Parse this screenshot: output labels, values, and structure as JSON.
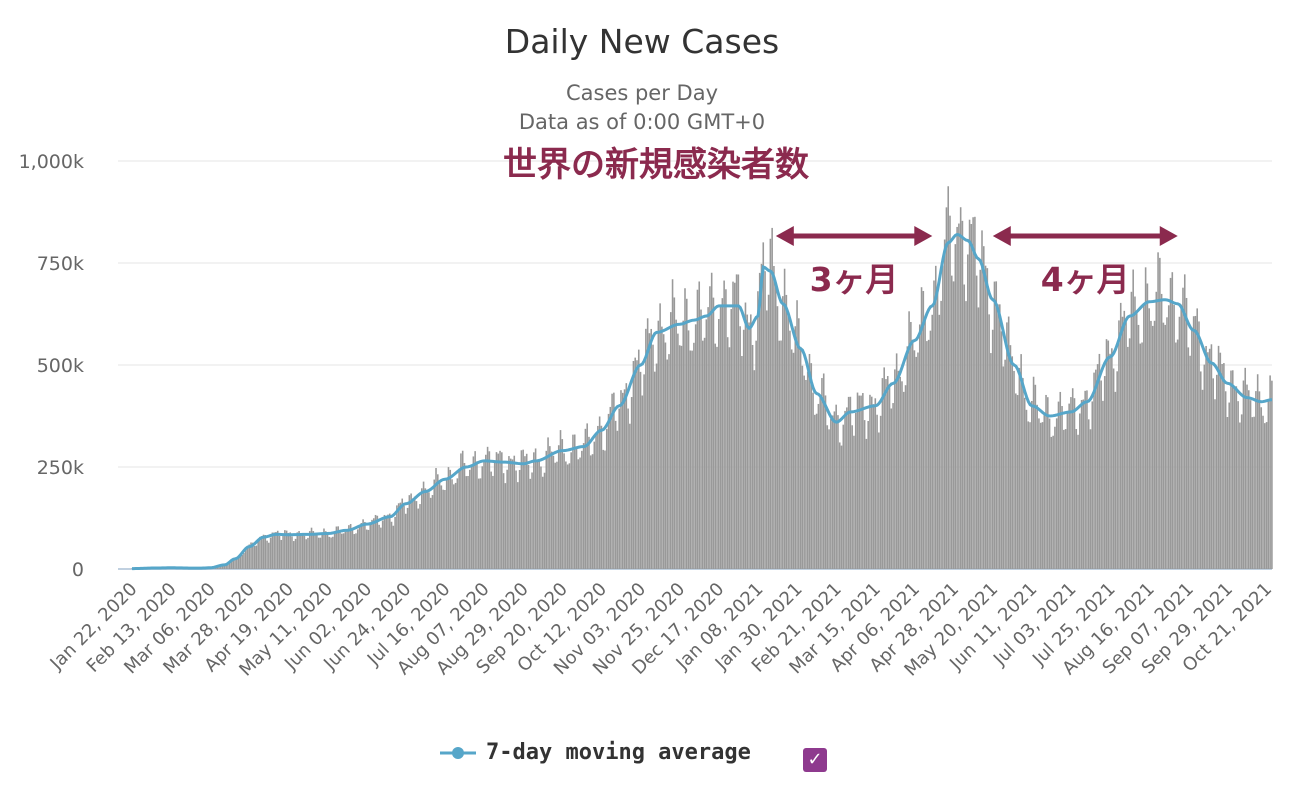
{
  "chart_data": {
    "type": "bar",
    "title": "Daily New Cases",
    "subtitle": "Cases per Day",
    "data_as_of": "Data as of 0:00 GMT+0",
    "annotation_title": "世界の新規感染者数",
    "annotations": [
      {
        "label": "3ヶ月",
        "from": "2021-01-18",
        "to": "2021-04-16"
      },
      {
        "label": "4ヶ月",
        "from": "2021-05-20",
        "to": "2021-09-01"
      }
    ],
    "y_ticks": [
      {
        "value": 0,
        "label": "0"
      },
      {
        "value": 250000,
        "label": "250k"
      },
      {
        "value": 500000,
        "label": "500k"
      },
      {
        "value": 750000,
        "label": "750k"
      },
      {
        "value": 1000000,
        "label": "1,000k"
      }
    ],
    "ylim": [
      0,
      1000000
    ],
    "x_start": "2020-01-22",
    "x_end": "2021-10-24",
    "x_ticks": [
      "Jan 22, 2020",
      "Feb 13, 2020",
      "Mar 06, 2020",
      "Mar 28, 2020",
      "Apr 19, 2020",
      "May 11, 2020",
      "Jun 02, 2020",
      "Jun 24, 2020",
      "Jul 16, 2020",
      "Aug 07, 2020",
      "Aug 29, 2020",
      "Sep 20, 2020",
      "Oct 12, 2020",
      "Nov 03, 2020",
      "Nov 25, 2020",
      "Dec 17, 2020",
      "Jan 08, 2021",
      "Jan 30, 2021",
      "Feb 21, 2021",
      "Mar 15, 2021",
      "Apr 06, 2021",
      "Apr 28, 2021",
      "May 20, 2021",
      "Jun 11, 2021",
      "Jul 03, 2021",
      "Jul 25, 2021",
      "Aug 16, 2021",
      "Sep 07, 2021",
      "Sep 29, 2021",
      "Oct 21, 2021"
    ],
    "moving_average_anchors": [
      [
        "2020-01-22",
        1000
      ],
      [
        "2020-02-05",
        2500
      ],
      [
        "2020-02-13",
        3000
      ],
      [
        "2020-02-28",
        2000
      ],
      [
        "2020-03-06",
        3000
      ],
      [
        "2020-03-14",
        10000
      ],
      [
        "2020-03-20",
        25000
      ],
      [
        "2020-03-28",
        55000
      ],
      [
        "2020-04-05",
        78000
      ],
      [
        "2020-04-12",
        85000
      ],
      [
        "2020-04-19",
        84000
      ],
      [
        "2020-05-01",
        85000
      ],
      [
        "2020-05-11",
        87000
      ],
      [
        "2020-05-22",
        95000
      ],
      [
        "2020-06-02",
        110000
      ],
      [
        "2020-06-15",
        128000
      ],
      [
        "2020-06-24",
        160000
      ],
      [
        "2020-07-05",
        190000
      ],
      [
        "2020-07-16",
        220000
      ],
      [
        "2020-07-28",
        250000
      ],
      [
        "2020-08-07",
        265000
      ],
      [
        "2020-08-18",
        262000
      ],
      [
        "2020-08-29",
        258000
      ],
      [
        "2020-09-05",
        265000
      ],
      [
        "2020-09-20",
        290000
      ],
      [
        "2020-10-02",
        300000
      ],
      [
        "2020-10-12",
        340000
      ],
      [
        "2020-10-22",
        400000
      ],
      [
        "2020-11-03",
        500000
      ],
      [
        "2020-11-12",
        580000
      ],
      [
        "2020-11-25",
        600000
      ],
      [
        "2020-12-03",
        610000
      ],
      [
        "2020-12-10",
        620000
      ],
      [
        "2020-12-17",
        645000
      ],
      [
        "2020-12-28",
        645000
      ],
      [
        "2021-01-03",
        590000
      ],
      [
        "2021-01-08",
        620000
      ],
      [
        "2021-01-11",
        740000
      ],
      [
        "2021-01-15",
        730000
      ],
      [
        "2021-01-22",
        650000
      ],
      [
        "2021-02-01",
        540000
      ],
      [
        "2021-02-10",
        430000
      ],
      [
        "2021-02-21",
        360000
      ],
      [
        "2021-03-01",
        385000
      ],
      [
        "2021-03-15",
        400000
      ],
      [
        "2021-03-25",
        455000
      ],
      [
        "2021-04-06",
        560000
      ],
      [
        "2021-04-16",
        645000
      ],
      [
        "2021-04-25",
        800000
      ],
      [
        "2021-04-30",
        820000
      ],
      [
        "2021-05-06",
        805000
      ],
      [
        "2021-05-12",
        760000
      ],
      [
        "2021-05-20",
        660000
      ],
      [
        "2021-06-01",
        500000
      ],
      [
        "2021-06-11",
        400000
      ],
      [
        "2021-06-21",
        375000
      ],
      [
        "2021-07-03",
        385000
      ],
      [
        "2021-07-12",
        410000
      ],
      [
        "2021-07-25",
        520000
      ],
      [
        "2021-08-05",
        620000
      ],
      [
        "2021-08-16",
        655000
      ],
      [
        "2021-08-25",
        660000
      ],
      [
        "2021-09-01",
        650000
      ],
      [
        "2021-09-10",
        585000
      ],
      [
        "2021-09-20",
        505000
      ],
      [
        "2021-09-29",
        455000
      ],
      [
        "2021-10-10",
        420000
      ],
      [
        "2021-10-18",
        410000
      ],
      [
        "2021-10-24",
        415000
      ]
    ],
    "bar_color": "#999999",
    "line_color": "#56a6c9",
    "annotation_color": "#8b2a4e",
    "legend": {
      "label": "7-day moving average",
      "checkbox": "✓"
    }
  }
}
